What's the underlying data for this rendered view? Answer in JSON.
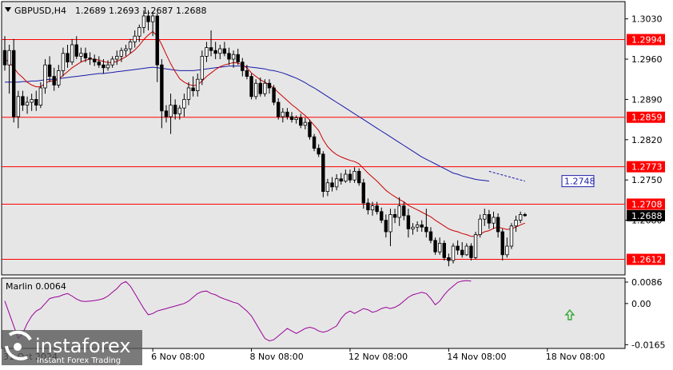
{
  "header": {
    "symbol": "GBPUSD,H4",
    "ohlc": "1.2689 1.2693 1.2687 1.2688"
  },
  "indicator": {
    "label": "Marlin 0.0064"
  },
  "watermark": {
    "brand": "instaforex",
    "tagline": "Instant Forex Trading"
  },
  "colors": {
    "background": "#ffffff",
    "plot_bg": "#e6e6e6",
    "level_line": "#ff0000",
    "fast_ma": "#cc0000",
    "slow_ma": "#1a1aaa",
    "oscillator": "#990099",
    "bull_body": "#ffffff",
    "bear_body": "#000000",
    "arrow": "#33aa33"
  },
  "chart_data": {
    "type": "candlestick",
    "price_axis": {
      "ylim": [
        1.2585,
        1.306
      ],
      "ticks": [
        "1.3030",
        "1.2960",
        "1.2890",
        "1.2820",
        "1.2750",
        "1.2680"
      ]
    },
    "levels": [
      {
        "value": 1.2994,
        "label": "1.2994"
      },
      {
        "value": 1.2859,
        "label": "1.2859"
      },
      {
        "value": 1.2773,
        "label": "1.2773"
      },
      {
        "value": 1.2708,
        "label": "1.2708"
      },
      {
        "value": 1.2612,
        "label": "1.2612"
      }
    ],
    "current_price": {
      "value": 1.2688,
      "label": "1.2688"
    },
    "ma_label": {
      "value": 1.2748,
      "label": "1.2748"
    },
    "x_labels": [
      {
        "index": 0,
        "label": "31 Oct 2024"
      },
      {
        "index": 33,
        "label": "6 Nov 08:00"
      },
      {
        "index": 55,
        "label": "8 Nov 08:00"
      },
      {
        "index": 77,
        "label": "12 Nov 08:00"
      },
      {
        "index": 99,
        "label": "14 Nov 08:00"
      },
      {
        "index": 121,
        "label": "18 Nov 08:00"
      }
    ],
    "candles": [
      [
        1.2975,
        1.3,
        1.294,
        1.295
      ],
      [
        1.295,
        1.2985,
        1.29,
        1.2975
      ],
      [
        1.2975,
        1.2995,
        1.285,
        1.286
      ],
      [
        1.286,
        1.2905,
        1.284,
        1.2895
      ],
      [
        1.2895,
        1.2905,
        1.287,
        1.288
      ],
      [
        1.288,
        1.2895,
        1.2865,
        1.2885
      ],
      [
        1.2885,
        1.29,
        1.287,
        1.289
      ],
      [
        1.289,
        1.2905,
        1.287,
        1.288
      ],
      [
        1.288,
        1.292,
        1.2875,
        1.291
      ],
      [
        1.291,
        1.296,
        1.29,
        1.295
      ],
      [
        1.295,
        1.2965,
        1.292,
        1.293
      ],
      [
        1.293,
        1.2945,
        1.2905,
        1.2915
      ],
      [
        1.2915,
        1.295,
        1.291,
        1.294
      ],
      [
        1.294,
        1.298,
        1.293,
        1.297
      ],
      [
        1.297,
        1.2985,
        1.2945,
        1.2955
      ],
      [
        1.2955,
        1.2995,
        1.295,
        1.2985
      ],
      [
        1.2985,
        1.3,
        1.296,
        1.2965
      ],
      [
        1.2965,
        1.298,
        1.2955,
        1.297
      ],
      [
        1.297,
        1.298,
        1.2955,
        1.2962
      ],
      [
        1.2962,
        1.2972,
        1.295,
        1.296
      ],
      [
        1.296,
        1.2968,
        1.2948,
        1.2955
      ],
      [
        1.2955,
        1.2965,
        1.2945,
        1.295
      ],
      [
        1.295,
        1.296,
        1.2935,
        1.2945
      ],
      [
        1.2945,
        1.2958,
        1.294,
        1.295
      ],
      [
        1.295,
        1.2965,
        1.2945,
        1.296
      ],
      [
        1.296,
        1.2975,
        1.295,
        1.2965
      ],
      [
        1.2965,
        1.298,
        1.2955,
        1.2975
      ],
      [
        1.2975,
        1.2985,
        1.2965,
        1.2978
      ],
      [
        1.2978,
        1.2995,
        1.297,
        1.299
      ],
      [
        1.299,
        1.301,
        1.298,
        1.3
      ],
      [
        1.3,
        1.302,
        1.299,
        1.3015
      ],
      [
        1.3015,
        1.3045,
        1.3005,
        1.3035
      ],
      [
        1.3035,
        1.3045,
        1.301,
        1.3025
      ],
      [
        1.3025,
        1.3042,
        1.3,
        1.3035
      ],
      [
        1.3035,
        1.304,
        1.292,
        1.295
      ],
      [
        1.295,
        1.296,
        1.284,
        1.287
      ],
      [
        1.287,
        1.288,
        1.285,
        1.286
      ],
      [
        1.286,
        1.29,
        1.283,
        1.288
      ],
      [
        1.288,
        1.289,
        1.2855,
        1.2865
      ],
      [
        1.2865,
        1.288,
        1.2855,
        1.2875
      ],
      [
        1.2875,
        1.29,
        1.286,
        1.289
      ],
      [
        1.289,
        1.292,
        1.288,
        1.291
      ],
      [
        1.291,
        1.293,
        1.2895,
        1.2905
      ],
      [
        1.2905,
        1.2935,
        1.2895,
        1.2925
      ],
      [
        1.2925,
        1.2975,
        1.2915,
        1.2965
      ],
      [
        1.2965,
        1.299,
        1.2955,
        1.298
      ],
      [
        1.298,
        1.301,
        1.2965,
        1.2975
      ],
      [
        1.2975,
        1.299,
        1.296,
        1.297
      ],
      [
        1.297,
        1.2985,
        1.296,
        1.2978
      ],
      [
        1.2978,
        1.299,
        1.2965,
        1.297
      ],
      [
        1.297,
        1.298,
        1.295,
        1.296
      ],
      [
        1.296,
        1.2975,
        1.2945,
        1.2968
      ],
      [
        1.2968,
        1.2978,
        1.295,
        1.2955
      ],
      [
        1.2955,
        1.2962,
        1.293,
        1.294
      ],
      [
        1.294,
        1.295,
        1.2925,
        1.293
      ],
      [
        1.293,
        1.2935,
        1.289,
        1.2895
      ],
      [
        1.2895,
        1.2925,
        1.289,
        1.2918
      ],
      [
        1.2918,
        1.2928,
        1.2895,
        1.29
      ],
      [
        1.29,
        1.2925,
        1.2895,
        1.2918
      ],
      [
        1.2918,
        1.2925,
        1.29,
        1.291
      ],
      [
        1.291,
        1.2915,
        1.288,
        1.2885
      ],
      [
        1.2885,
        1.2892,
        1.2855,
        1.286
      ],
      [
        1.286,
        1.2875,
        1.285,
        1.2868
      ],
      [
        1.2868,
        1.2875,
        1.2855,
        1.286
      ],
      [
        1.286,
        1.2868,
        1.285,
        1.2855
      ],
      [
        1.2855,
        1.2862,
        1.2848,
        1.2858
      ],
      [
        1.2858,
        1.2865,
        1.284,
        1.2845
      ],
      [
        1.2845,
        1.2858,
        1.2838,
        1.285
      ],
      [
        1.285,
        1.2855,
        1.282,
        1.2825
      ],
      [
        1.2825,
        1.283,
        1.28,
        1.2805
      ],
      [
        1.2805,
        1.2812,
        1.279,
        1.2795
      ],
      [
        1.2795,
        1.28,
        1.272,
        1.273
      ],
      [
        1.273,
        1.2752,
        1.2722,
        1.2745
      ],
      [
        1.2745,
        1.2755,
        1.273,
        1.2738
      ],
      [
        1.2738,
        1.276,
        1.2732,
        1.2752
      ],
      [
        1.2752,
        1.2762,
        1.2742,
        1.2748
      ],
      [
        1.2748,
        1.2768,
        1.2745,
        1.276
      ],
      [
        1.276,
        1.2768,
        1.2745,
        1.275
      ],
      [
        1.275,
        1.2772,
        1.2745,
        1.2765
      ],
      [
        1.2765,
        1.277,
        1.274,
        1.2745
      ],
      [
        1.2745,
        1.2752,
        1.27,
        1.271
      ],
      [
        1.271,
        1.2718,
        1.269,
        1.2698
      ],
      [
        1.2698,
        1.2712,
        1.2688,
        1.2705
      ],
      [
        1.2705,
        1.2712,
        1.269,
        1.2695
      ],
      [
        1.2695,
        1.2702,
        1.2675,
        1.268
      ],
      [
        1.268,
        1.269,
        1.265,
        1.266
      ],
      [
        1.266,
        1.27,
        1.2635,
        1.269
      ],
      [
        1.269,
        1.27,
        1.2675,
        1.2685
      ],
      [
        1.2685,
        1.272,
        1.267,
        1.2705
      ],
      [
        1.2705,
        1.2712,
        1.268,
        1.2688
      ],
      [
        1.2688,
        1.27,
        1.265,
        1.2665
      ],
      [
        1.2665,
        1.2675,
        1.2655,
        1.2668
      ],
      [
        1.2668,
        1.2678,
        1.266,
        1.2672
      ],
      [
        1.2672,
        1.268,
        1.266,
        1.2668
      ],
      [
        1.2668,
        1.27,
        1.265,
        1.266
      ],
      [
        1.266,
        1.2668,
        1.264,
        1.2645
      ],
      [
        1.2645,
        1.265,
        1.262,
        1.2625
      ],
      [
        1.2625,
        1.265,
        1.262,
        1.264
      ],
      [
        1.264,
        1.2645,
        1.261,
        1.2615
      ],
      [
        1.2615,
        1.2622,
        1.26,
        1.261
      ],
      [
        1.261,
        1.264,
        1.2605,
        1.2635
      ],
      [
        1.2635,
        1.2645,
        1.262,
        1.2628
      ],
      [
        1.2628,
        1.2642,
        1.2615,
        1.262
      ],
      [
        1.262,
        1.264,
        1.2618,
        1.2635
      ],
      [
        1.2635,
        1.264,
        1.261,
        1.2615
      ],
      [
        1.2615,
        1.266,
        1.2612,
        1.2655
      ],
      [
        1.2655,
        1.269,
        1.265,
        1.2682
      ],
      [
        1.2682,
        1.27,
        1.267,
        1.269
      ],
      [
        1.269,
        1.2698,
        1.2665,
        1.2675
      ],
      [
        1.2675,
        1.2695,
        1.2665,
        1.2685
      ],
      [
        1.2685,
        1.2692,
        1.265,
        1.266
      ],
      [
        1.266,
        1.2665,
        1.261,
        1.262
      ],
      [
        1.262,
        1.265,
        1.2615,
        1.2635
      ],
      [
        1.2635,
        1.2675,
        1.263,
        1.267
      ],
      [
        1.267,
        1.2688,
        1.266,
        1.268
      ],
      [
        1.268,
        1.2695,
        1.2675,
        1.269
      ],
      [
        1.269,
        1.2693,
        1.2686,
        1.2688
      ]
    ],
    "fast_ma": [
      1.296,
      1.2955,
      1.2945,
      1.2935,
      1.2928,
      1.292,
      1.2915,
      1.2912,
      1.2912,
      1.2918,
      1.2922,
      1.2922,
      1.2925,
      1.2932,
      1.2938,
      1.2945,
      1.295,
      1.2955,
      1.2958,
      1.296,
      1.296,
      1.2958,
      1.2956,
      1.2954,
      1.2954,
      1.2956,
      1.296,
      1.2964,
      1.297,
      1.2976,
      1.2984,
      1.2994,
      1.3002,
      1.3008,
      1.3,
      1.2985,
      1.2968,
      1.2952,
      1.2938,
      1.2926,
      1.292,
      1.2916,
      1.2914,
      1.2915,
      1.2922,
      1.293,
      1.2936,
      1.2942,
      1.2947,
      1.295,
      1.2952,
      1.2954,
      1.2953,
      1.295,
      1.2945,
      1.2936,
      1.293,
      1.2924,
      1.292,
      1.2915,
      1.291,
      1.2902,
      1.2895,
      1.2888,
      1.2881,
      1.2875,
      1.2868,
      1.2862,
      1.2854,
      1.2845,
      1.2836,
      1.282,
      1.2808,
      1.28,
      1.2794,
      1.279,
      1.2787,
      1.2784,
      1.2782,
      1.2778,
      1.277,
      1.2762,
      1.2755,
      1.2748,
      1.274,
      1.2732,
      1.2726,
      1.2721,
      1.2716,
      1.2712,
      1.2706,
      1.2702,
      1.2698,
      1.2694,
      1.269,
      1.2686,
      1.268,
      1.2675,
      1.267,
      1.2665,
      1.2662,
      1.266,
      1.2657,
      1.2655,
      1.2652,
      1.2652,
      1.2656,
      1.266,
      1.2662,
      1.2666,
      1.2668,
      1.2666,
      1.2664,
      1.2665,
      1.2668,
      1.2672,
      1.2675
    ],
    "slow_ma": [
      1.292,
      1.292,
      1.292,
      1.292,
      1.2921,
      1.2921,
      1.2922,
      1.2922,
      1.2923,
      1.2924,
      1.2925,
      1.2925,
      1.2926,
      1.2927,
      1.2928,
      1.2929,
      1.293,
      1.2931,
      1.2932,
      1.2933,
      1.2934,
      1.2935,
      1.2935,
      1.2936,
      1.2937,
      1.2938,
      1.2939,
      1.294,
      1.2941,
      1.2942,
      1.2943,
      1.2944,
      1.2945,
      1.2946,
      1.2945,
      1.2944,
      1.2943,
      1.2942,
      1.2941,
      1.294,
      1.294,
      1.294,
      1.294,
      1.2941,
      1.2942,
      1.2943,
      1.2944,
      1.2945,
      1.2946,
      1.2947,
      1.2948,
      1.2948,
      1.2948,
      1.2948,
      1.2947,
      1.2946,
      1.2945,
      1.2944,
      1.2943,
      1.2941,
      1.294,
      1.2938,
      1.2936,
      1.2933,
      1.293,
      1.2927,
      1.2923,
      1.2919,
      1.2914,
      1.291,
      1.2905,
      1.29,
      1.2895,
      1.289,
      1.2885,
      1.288,
      1.2875,
      1.287,
      1.2865,
      1.286,
      1.2855,
      1.285,
      1.2845,
      1.284,
      1.2835,
      1.283,
      1.2825,
      1.282,
      1.2815,
      1.281,
      1.2805,
      1.28,
      1.2795,
      1.279,
      1.2786,
      1.2782,
      1.2778,
      1.2774,
      1.277,
      1.2766,
      1.2762,
      1.276,
      1.2757,
      1.2755,
      1.2753,
      1.2751,
      1.275,
      1.2749,
      1.2748,
      null,
      null,
      null,
      null,
      null,
      null,
      null,
      null
    ],
    "slow_ma_projection": [
      [
        108,
        1.2765
      ],
      [
        116,
        1.2748
      ]
    ],
    "oscillator": {
      "ylim": [
        -0.018,
        0.0102
      ],
      "ticks": [
        "0.0086",
        "0.00",
        "-0.0165"
      ],
      "values": [
        0.001,
        -0.004,
        -0.009,
        -0.014,
        -0.012,
        -0.008,
        -0.005,
        -0.003,
        -0.002,
        0.0,
        0.002,
        0.0025,
        0.0028,
        0.0035,
        0.004,
        0.003,
        0.0018,
        0.001,
        0.0008,
        0.001,
        0.0012,
        0.0015,
        0.002,
        0.003,
        0.0045,
        0.006,
        0.008,
        0.0088,
        0.007,
        0.004,
        0.001,
        -0.002,
        -0.0045,
        -0.004,
        -0.003,
        -0.0025,
        -0.002,
        -0.0015,
        -0.001,
        -0.0005,
        0.0,
        0.001,
        0.0025,
        0.004,
        0.0048,
        0.005,
        0.004,
        0.0035,
        0.0025,
        0.0018,
        0.0012,
        0.0005,
        0.0,
        -0.0015,
        -0.003,
        -0.005,
        -0.008,
        -0.011,
        -0.014,
        -0.015,
        -0.0145,
        -0.013,
        -0.0115,
        -0.01,
        -0.011,
        -0.012,
        -0.011,
        -0.01,
        -0.0095,
        -0.01,
        -0.011,
        -0.0115,
        -0.011,
        -0.01,
        -0.009,
        -0.006,
        -0.004,
        -0.003,
        -0.004,
        -0.003,
        -0.002,
        -0.0025,
        -0.0035,
        -0.003,
        -0.002,
        -0.0015,
        -0.002,
        -0.0015,
        -0.0005,
        0.001,
        0.0025,
        0.0035,
        0.004,
        0.0045,
        0.004,
        0.002,
        -0.0005,
        0.001,
        0.0035,
        0.0055,
        0.007,
        0.0085,
        0.009,
        0.0092,
        0.009,
        null,
        null,
        null,
        null,
        null,
        null,
        null,
        null,
        null,
        null,
        null,
        null
      ]
    },
    "signal_arrow_index": 126
  }
}
